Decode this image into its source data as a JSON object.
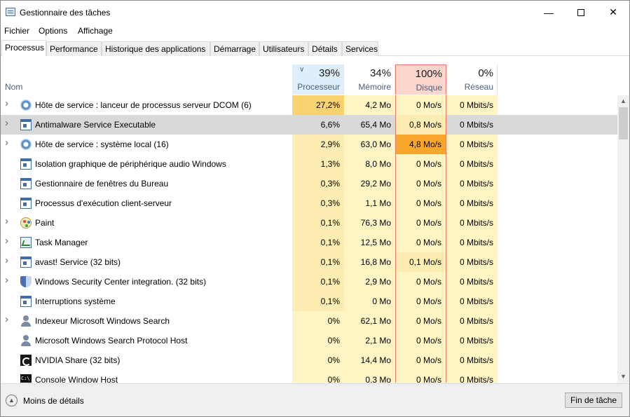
{
  "window": {
    "title": "Gestionnaire des tâches"
  },
  "menu": [
    "Fichier",
    "Options",
    "Affichage"
  ],
  "tabs": [
    "Processus",
    "Performance",
    "Historique des applications",
    "Démarrage",
    "Utilisateurs",
    "Détails",
    "Services"
  ],
  "active_tab": "Processus",
  "columns": {
    "name_label": "Nom",
    "cpu": {
      "percent": "39%",
      "label": "Processeur"
    },
    "memory": {
      "percent": "34%",
      "label": "Mémoire"
    },
    "disk": {
      "percent": "100%",
      "label": "Disque"
    },
    "network": {
      "percent": "0%",
      "label": "Réseau"
    }
  },
  "colors": {
    "heat_light": "#fff4c4",
    "heat_medium": "#fdedb3",
    "heat_strong": "#fad26f",
    "heat_hot": "#f9a62c",
    "disk_header_bg": "#fcd6cc",
    "disk_header_border": "#e87c66",
    "cpu_header_bg": "#dfeefb",
    "selected_row": "#d9d9d9"
  },
  "processes": [
    {
      "name": "Hôte de service : lanceur de processus serveur DCOM (6)",
      "icon": "gear-icon",
      "expandable": true,
      "cpu": "27,2%",
      "memory": "4,2 Mo",
      "disk": "0 Mo/s",
      "network": "0 Mbits/s",
      "cpu_heat": "strong",
      "mem_heat": "light",
      "disk_heat": "light",
      "net_heat": "light"
    },
    {
      "name": "Antimalware Service Executable",
      "icon": "window-icon",
      "expandable": true,
      "selected": true,
      "cpu": "6,6%",
      "memory": "65,4 Mo",
      "disk": "0,8 Mo/s",
      "network": "0 Mbits/s",
      "cpu_heat": "medium",
      "mem_heat": "light",
      "disk_heat": "medium",
      "net_heat": "light"
    },
    {
      "name": "Hôte de service : système local (16)",
      "icon": "gear-icon",
      "expandable": true,
      "cpu": "2,9%",
      "memory": "63,0 Mo",
      "disk": "4,8 Mo/s",
      "network": "0 Mbits/s",
      "cpu_heat": "medium",
      "mem_heat": "light",
      "disk_heat": "hot",
      "net_heat": "light"
    },
    {
      "name": "Isolation graphique de périphérique audio Windows",
      "icon": "window-icon",
      "expandable": false,
      "cpu": "1,3%",
      "memory": "8,0 Mo",
      "disk": "0 Mo/s",
      "network": "0 Mbits/s",
      "cpu_heat": "medium",
      "mem_heat": "light",
      "disk_heat": "light",
      "net_heat": "light"
    },
    {
      "name": "Gestionnaire de fenêtres du Bureau",
      "icon": "window-icon",
      "expandable": false,
      "cpu": "0,3%",
      "memory": "29,2 Mo",
      "disk": "0 Mo/s",
      "network": "0 Mbits/s",
      "cpu_heat": "medium",
      "mem_heat": "light",
      "disk_heat": "light",
      "net_heat": "light"
    },
    {
      "name": "Processus d'exécution client-serveur",
      "icon": "window-icon",
      "expandable": false,
      "cpu": "0,3%",
      "memory": "1,1 Mo",
      "disk": "0 Mo/s",
      "network": "0 Mbits/s",
      "cpu_heat": "medium",
      "mem_heat": "light",
      "disk_heat": "light",
      "net_heat": "light"
    },
    {
      "name": "Paint",
      "icon": "paint-icon",
      "expandable": true,
      "cpu": "0,1%",
      "memory": "76,3 Mo",
      "disk": "0 Mo/s",
      "network": "0 Mbits/s",
      "cpu_heat": "medium",
      "mem_heat": "light",
      "disk_heat": "light",
      "net_heat": "light"
    },
    {
      "name": "Task Manager",
      "icon": "task-manager-icon",
      "expandable": true,
      "cpu": "0,1%",
      "memory": "12,5 Mo",
      "disk": "0 Mo/s",
      "network": "0 Mbits/s",
      "cpu_heat": "medium",
      "mem_heat": "light",
      "disk_heat": "light",
      "net_heat": "light"
    },
    {
      "name": "avast! Service (32 bits)",
      "icon": "window-icon",
      "expandable": true,
      "cpu": "0,1%",
      "memory": "16,8 Mo",
      "disk": "0,1 Mo/s",
      "network": "0 Mbits/s",
      "cpu_heat": "medium",
      "mem_heat": "light",
      "disk_heat": "medium",
      "net_heat": "light"
    },
    {
      "name": "Windows Security Center integration. (32 bits)",
      "icon": "shield-icon",
      "expandable": true,
      "cpu": "0,1%",
      "memory": "2,9 Mo",
      "disk": "0 Mo/s",
      "network": "0 Mbits/s",
      "cpu_heat": "medium",
      "mem_heat": "light",
      "disk_heat": "light",
      "net_heat": "light"
    },
    {
      "name": "Interruptions système",
      "icon": "window-icon",
      "expandable": false,
      "cpu": "0,1%",
      "memory": "0 Mo",
      "disk": "0 Mo/s",
      "network": "0 Mbits/s",
      "cpu_heat": "medium",
      "mem_heat": "light",
      "disk_heat": "light",
      "net_heat": "light"
    },
    {
      "name": "Indexeur Microsoft Windows Search",
      "icon": "user-icon",
      "expandable": true,
      "cpu": "0%",
      "memory": "62,1 Mo",
      "disk": "0 Mo/s",
      "network": "0 Mbits/s",
      "cpu_heat": "light",
      "mem_heat": "light",
      "disk_heat": "light",
      "net_heat": "light"
    },
    {
      "name": "Microsoft Windows Search Protocol Host",
      "icon": "user-icon",
      "expandable": false,
      "cpu": "0%",
      "memory": "2,1 Mo",
      "disk": "0 Mo/s",
      "network": "0 Mbits/s",
      "cpu_heat": "light",
      "mem_heat": "light",
      "disk_heat": "light",
      "net_heat": "light"
    },
    {
      "name": "NVIDIA Share (32 bits)",
      "icon": "nvidia-icon",
      "expandable": false,
      "cpu": "0%",
      "memory": "14,4 Mo",
      "disk": "0 Mo/s",
      "network": "0 Mbits/s",
      "cpu_heat": "light",
      "mem_heat": "light",
      "disk_heat": "light",
      "net_heat": "light"
    },
    {
      "name": "Console Window Host",
      "icon": "console-icon",
      "expandable": false,
      "cpu": "0%",
      "memory": "0,3 Mo",
      "disk": "0 Mo/s",
      "network": "0 Mbits/s",
      "cpu_heat": "light",
      "mem_heat": "light",
      "disk_heat": "light",
      "net_heat": "light"
    }
  ],
  "footer": {
    "less_details": "Moins de détails",
    "end_task": "Fin de tâche"
  }
}
